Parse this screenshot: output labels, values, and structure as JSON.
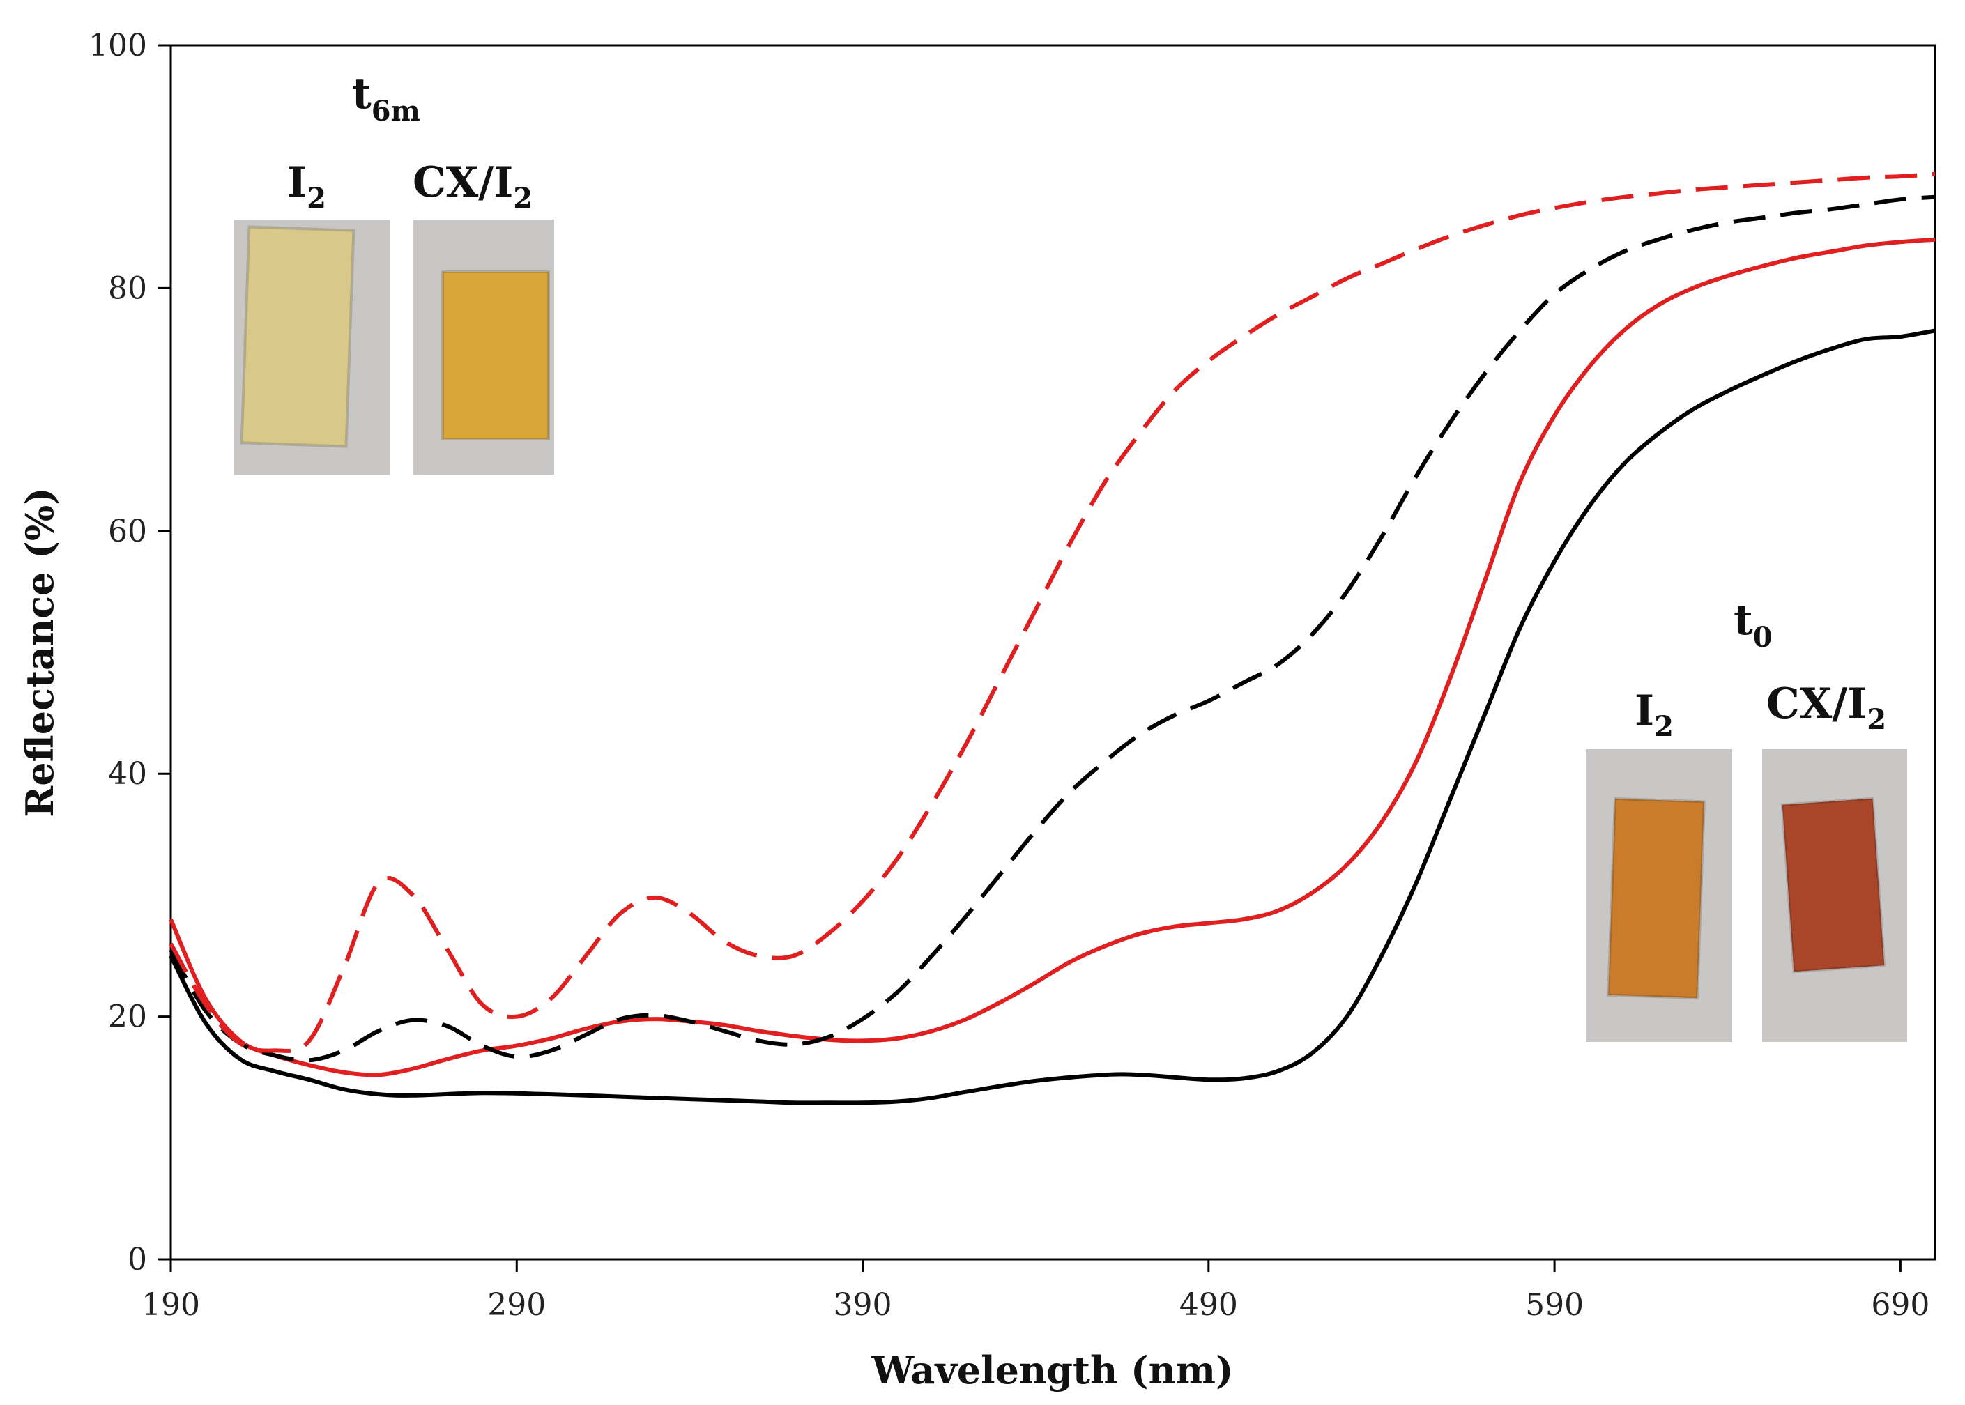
{
  "chart_data": {
    "type": "line",
    "title": "",
    "xlabel": "Wavelength (nm)",
    "ylabel": "Reflectance (%)",
    "xlim": [
      190,
      700
    ],
    "ylim": [
      0,
      100
    ],
    "xticks": [
      190,
      290,
      390,
      490,
      590,
      690
    ],
    "yticks": [
      0,
      20,
      40,
      60,
      80,
      100
    ],
    "grid": false,
    "series": [
      {
        "name": "I2 t0",
        "color": "#000000",
        "dash": "solid",
        "x": [
          190,
          200,
          210,
          220,
          230,
          240,
          250,
          260,
          280,
          300,
          320,
          340,
          360,
          370,
          380,
          390,
          400,
          410,
          420,
          440,
          460,
          470,
          480,
          490,
          500,
          510,
          520,
          530,
          540,
          550,
          560,
          570,
          580,
          590,
          600,
          610,
          620,
          630,
          640,
          650,
          660,
          670,
          680,
          690,
          700
        ],
        "y": [
          25,
          19.5,
          16.5,
          15.5,
          14.8,
          14,
          13.6,
          13.5,
          13.7,
          13.6,
          13.4,
          13.2,
          13,
          12.9,
          12.9,
          12.9,
          13,
          13.3,
          13.8,
          14.7,
          15.2,
          15.2,
          15,
          14.8,
          14.9,
          15.5,
          17,
          20,
          25,
          31,
          38,
          45,
          52,
          57.5,
          62,
          65.5,
          68,
          70,
          71.5,
          72.8,
          74,
          75,
          75.8,
          76,
          76.5
        ]
      },
      {
        "name": "CX/I2 t0",
        "color": "#e02020",
        "dash": "solid",
        "x": [
          190,
          200,
          210,
          220,
          230,
          240,
          250,
          260,
          270,
          280,
          290,
          300,
          310,
          320,
          330,
          340,
          350,
          360,
          370,
          380,
          390,
          400,
          410,
          420,
          430,
          440,
          450,
          460,
          470,
          480,
          490,
          500,
          510,
          520,
          530,
          540,
          550,
          560,
          570,
          580,
          590,
          600,
          610,
          620,
          630,
          640,
          650,
          660,
          670,
          680,
          690,
          700
        ],
        "y": [
          28,
          21.5,
          18,
          16.8,
          16,
          15.4,
          15.2,
          15.7,
          16.5,
          17.2,
          17.6,
          18.2,
          19,
          19.6,
          19.8,
          19.6,
          19.3,
          18.8,
          18.4,
          18.1,
          18,
          18.2,
          18.8,
          19.8,
          21.2,
          22.8,
          24.5,
          25.8,
          26.8,
          27.4,
          27.7,
          28,
          28.7,
          30.2,
          32.5,
          36,
          41,
          48,
          56,
          64,
          69.5,
          73.5,
          76.5,
          78.6,
          80,
          81,
          81.8,
          82.5,
          83,
          83.5,
          83.8,
          84
        ]
      },
      {
        "name": "I2 t6m",
        "color": "#000000",
        "dash": "dashed",
        "x": [
          190,
          200,
          210,
          220,
          230,
          240,
          250,
          260,
          270,
          280,
          290,
          300,
          310,
          320,
          330,
          340,
          350,
          360,
          370,
          380,
          390,
          400,
          410,
          420,
          430,
          440,
          450,
          460,
          470,
          480,
          490,
          500,
          510,
          520,
          530,
          540,
          550,
          560,
          570,
          580,
          590,
          600,
          610,
          620,
          630,
          640,
          650,
          660,
          670,
          680,
          690,
          700
        ],
        "y": [
          25.5,
          20.5,
          17.8,
          16.8,
          16.4,
          17.2,
          18.8,
          19.7,
          19.2,
          17.6,
          16.7,
          17.2,
          18.5,
          19.8,
          20.1,
          19.6,
          18.8,
          18,
          17.7,
          18.3,
          19.8,
          22,
          25,
          28.3,
          31.8,
          35.3,
          38.5,
          41,
          43.2,
          44.8,
          46,
          47.5,
          49,
          51.5,
          55,
          59.5,
          64.5,
          69,
          73,
          76.5,
          79.5,
          81.5,
          83,
          84,
          84.8,
          85.4,
          85.8,
          86.2,
          86.5,
          86.9,
          87.3,
          87.5
        ]
      },
      {
        "name": "CX/I2 t6m",
        "color": "#e02020",
        "dash": "dashed",
        "x": [
          190,
          200,
          210,
          220,
          230,
          240,
          250,
          260,
          270,
          280,
          290,
          300,
          310,
          320,
          330,
          340,
          350,
          360,
          370,
          380,
          390,
          400,
          410,
          420,
          430,
          440,
          450,
          460,
          470,
          480,
          490,
          500,
          510,
          520,
          530,
          540,
          550,
          560,
          570,
          580,
          590,
          600,
          610,
          620,
          630,
          640,
          650,
          660,
          670,
          680,
          690,
          700
        ],
        "y": [
          26,
          21,
          17.8,
          17.2,
          18,
          24,
          31,
          30,
          25.5,
          21,
          20,
          21.5,
          25,
          28.5,
          29.8,
          28.5,
          26.2,
          25,
          25,
          26.8,
          29.5,
          33,
          37.5,
          42.5,
          48,
          53.5,
          59,
          64,
          68,
          71.5,
          74,
          76,
          77.8,
          79.3,
          80.8,
          82,
          83.2,
          84.3,
          85.2,
          86,
          86.6,
          87.1,
          87.5,
          87.8,
          88.1,
          88.3,
          88.5,
          88.7,
          88.9,
          89.1,
          89.2,
          89.4
        ]
      }
    ],
    "annotations": {
      "t6m": {
        "title_main": "t",
        "title_sub": "6m",
        "label_left_main": "I",
        "label_left_sub": "2",
        "label_right_main": "CX/I",
        "label_right_sub": "2"
      },
      "t0": {
        "title_main": "t",
        "title_sub": "0",
        "label_left_main": "I",
        "label_left_sub": "2",
        "label_right_main": "CX/I",
        "label_right_sub": "2"
      }
    },
    "photo_colors": {
      "t6m_I2": "#d8c98a",
      "t6m_CXI2": "#d9a63a",
      "t0_I2": "#c97c2c",
      "t0_CXI2": "#a9462a",
      "photo_bg": "#c9c7c5"
    }
  }
}
